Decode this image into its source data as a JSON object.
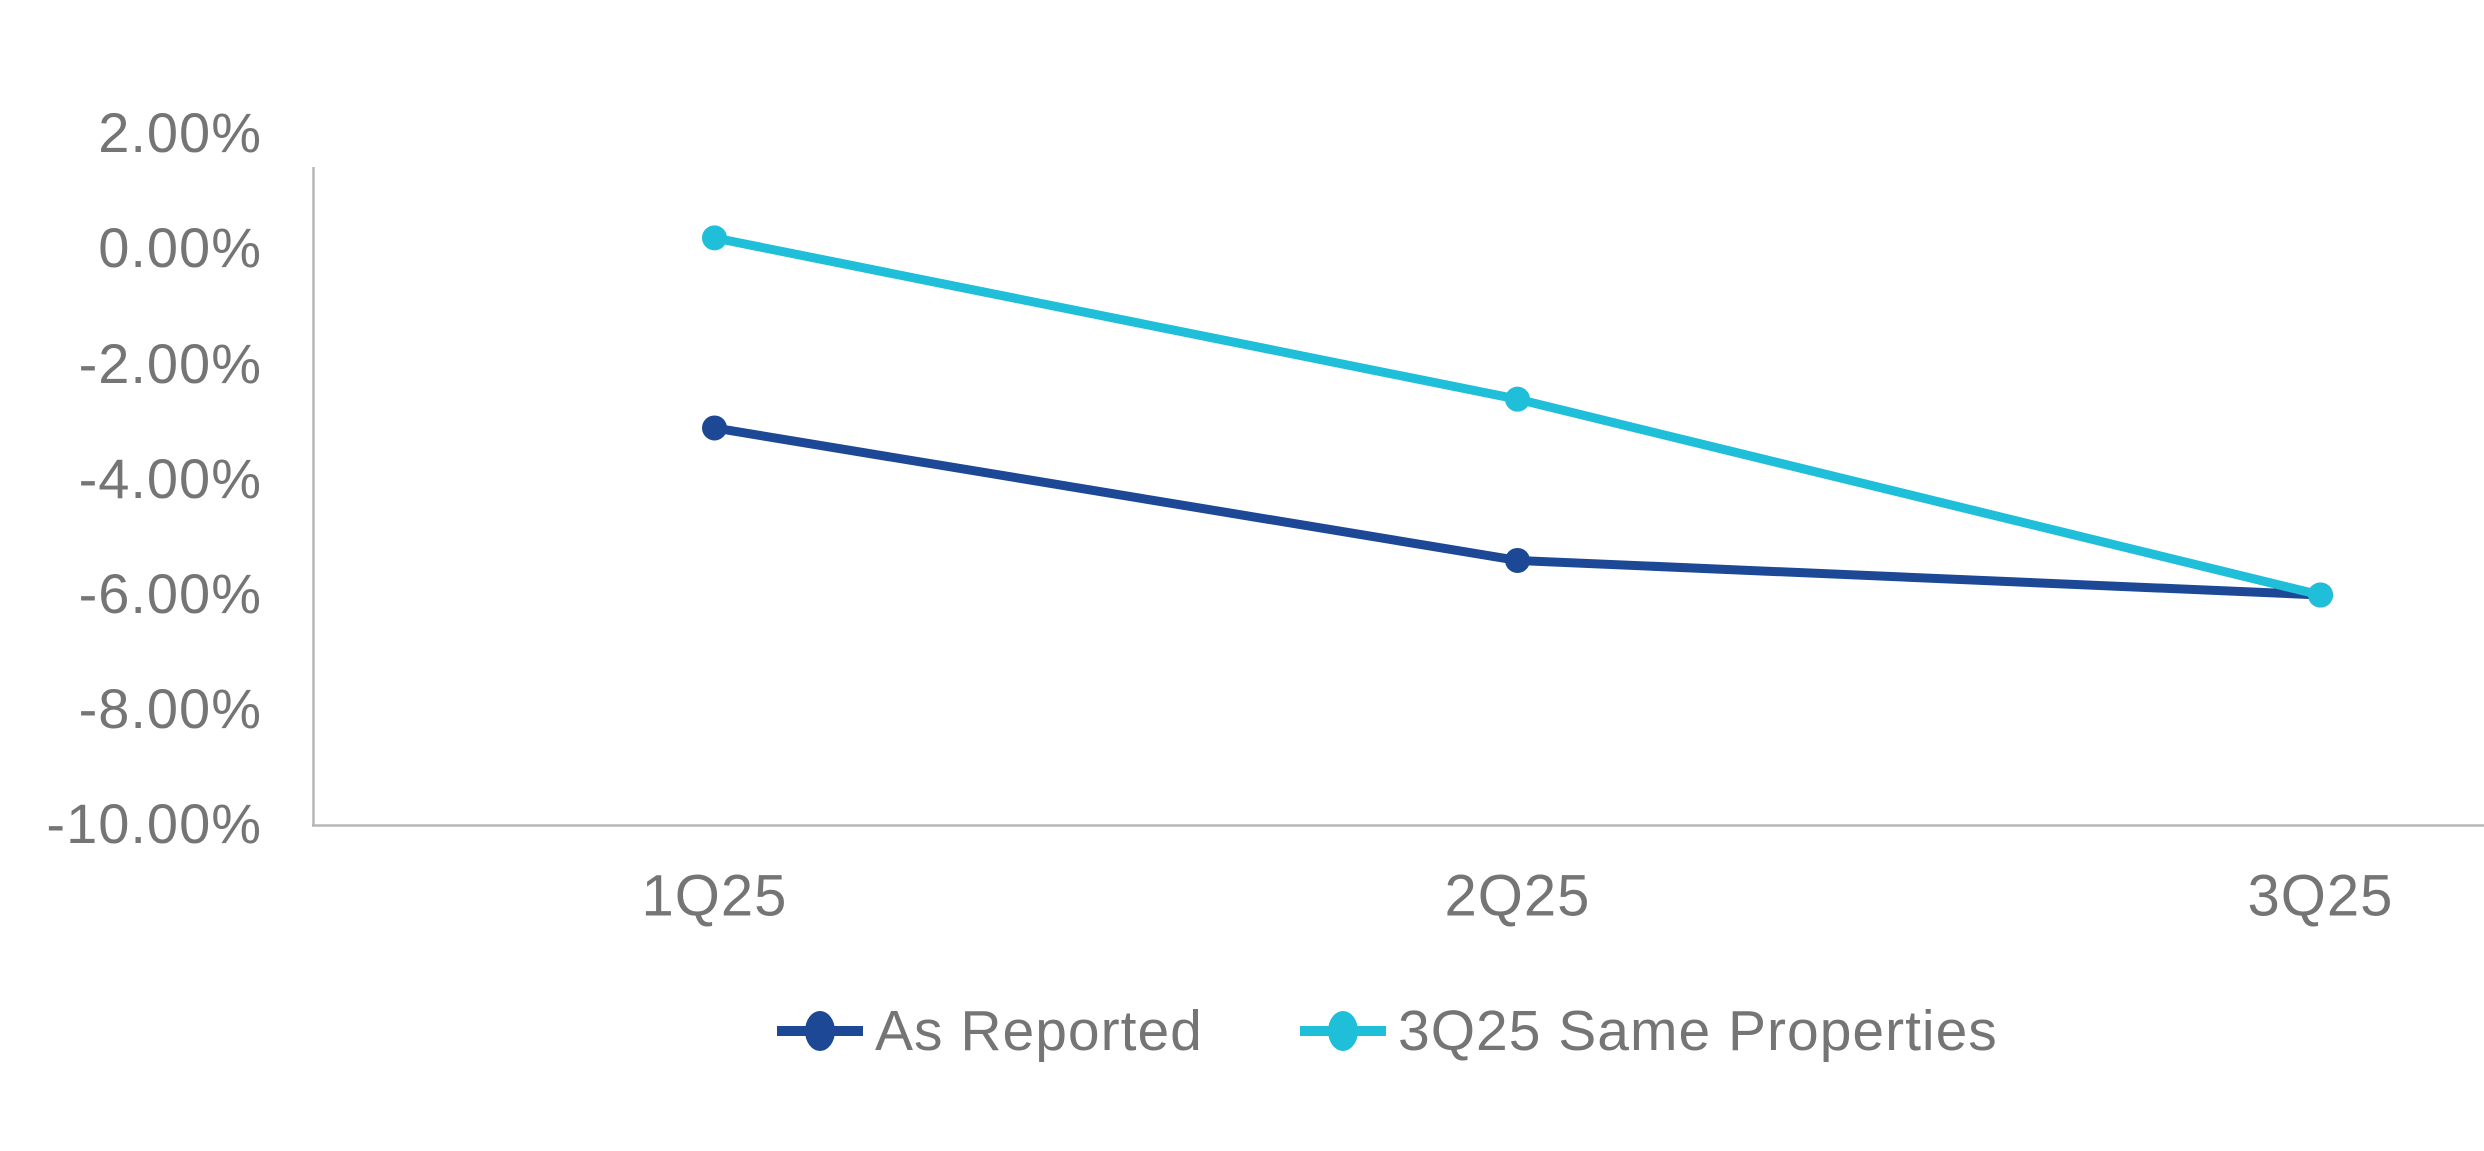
{
  "chart_data": {
    "type": "line",
    "title": "",
    "xlabel": "",
    "ylabel": "",
    "categories": [
      "1Q25",
      "2Q25",
      "3Q25"
    ],
    "series": [
      {
        "name": "As Reported",
        "color": "#1C4896",
        "values": [
          -3.1,
          -5.4,
          -6.0
        ]
      },
      {
        "name": "3Q25 Same Properties",
        "color": "#20BFD9",
        "values": [
          0.2,
          -2.6,
          -6.0
        ]
      }
    ],
    "ylim": [
      -10,
      2
    ],
    "ytick_step": 2,
    "ytick_labels": [
      "2.00%",
      "0.00%",
      "-2.00%",
      "-4.00%",
      "-6.00%",
      "-8.00%",
      "-10.00%"
    ],
    "grid": false,
    "legend_position": "bottom",
    "axis_color": "#B7B7B7",
    "label_color": "#757575",
    "background": "#FFFFFF"
  }
}
